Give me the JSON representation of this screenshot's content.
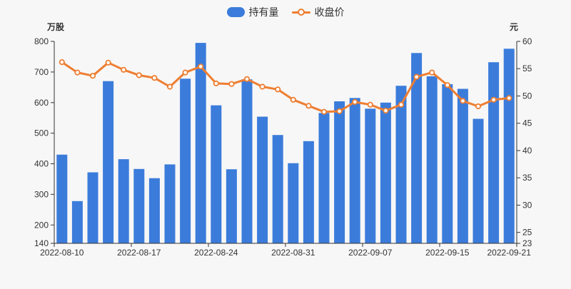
{
  "chart_data": {
    "type": "bar+line",
    "title": "",
    "background": "#f7f7f7",
    "grid": false,
    "legend_position": "top-center",
    "ylabel_left": "万股",
    "ylabel_right": "元",
    "ylim_left": [
      140,
      800
    ],
    "ylim_right": [
      23,
      60
    ],
    "left_ticks": [
      140,
      200,
      300,
      400,
      500,
      600,
      700,
      800
    ],
    "right_ticks": [
      23,
      25,
      30,
      35,
      40,
      45,
      50,
      55,
      60
    ],
    "x_shown_labels": [
      "2022-08-10",
      "2022-08-17",
      "2022-08-24",
      "2022-08-31",
      "2022-09-07",
      "2022-09-15",
      "2022-09-21"
    ],
    "x_shown_label_indices": [
      0,
      5,
      10,
      15,
      20,
      25,
      29
    ],
    "categories": [
      "2022-08-10",
      "2022-08-11",
      "2022-08-12",
      "2022-08-15",
      "2022-08-16",
      "2022-08-17",
      "2022-08-18",
      "2022-08-19",
      "2022-08-22",
      "2022-08-23",
      "2022-08-24",
      "2022-08-25",
      "2022-08-26",
      "2022-08-29",
      "2022-08-30",
      "2022-08-31",
      "2022-09-01",
      "2022-09-02",
      "2022-09-05",
      "2022-09-06",
      "2022-09-07",
      "2022-09-08",
      "2022-09-09",
      "2022-09-13",
      "2022-09-14",
      "2022-09-15",
      "2022-09-16",
      "2022-09-19",
      "2022-09-20",
      "2022-09-21"
    ],
    "series": [
      {
        "name": "持有量",
        "type": "bar",
        "axis": "left",
        "unit": "万股",
        "color": "#3b7cdb",
        "values": [
          430,
          278,
          372,
          670,
          415,
          383,
          353,
          398,
          678,
          795,
          591,
          382,
          676,
          554,
          494,
          402,
          474,
          566,
          604,
          615,
          580,
          600,
          655,
          762,
          686,
          660,
          645,
          547,
          732,
          776
        ]
      },
      {
        "name": "收盘价",
        "type": "line",
        "axis": "right",
        "unit": "元",
        "color": "#ee7e32",
        "marker": "hollow-circle",
        "values": [
          56.2,
          54.3,
          53.7,
          56.1,
          54.8,
          53.8,
          53.3,
          51.7,
          54.3,
          55.4,
          52.3,
          52.2,
          53.1,
          51.7,
          51.2,
          49.3,
          48.2,
          47.1,
          47.2,
          48.9,
          48.4,
          47.3,
          48.4,
          53.5,
          54.3,
          52.0,
          49.1,
          48.1,
          49.3,
          49.6
        ]
      }
    ]
  }
}
